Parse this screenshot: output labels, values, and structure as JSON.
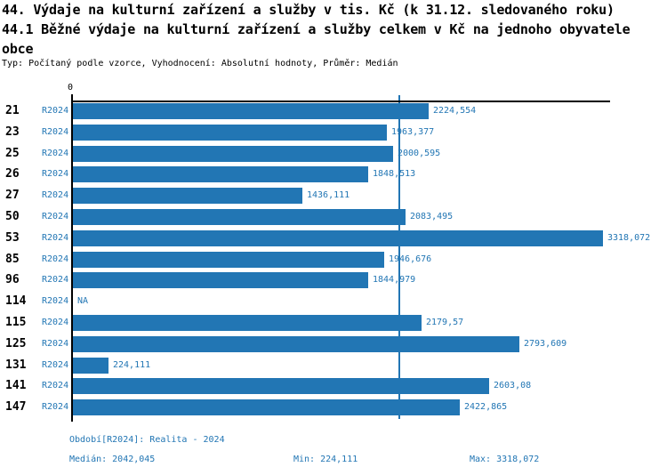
{
  "title": {
    "line1": "44. Výdaje na kulturní zařízení a služby v tis. Kč (k 31.12. sledovaného roku)",
    "line2": "44.1 Běžné výdaje na kulturní zařízení a služby celkem v Kč na jednoho obyvatele",
    "line3": "obce",
    "subtitle": "Typ: Počítaný podle vzorce, Vyhodnocení: Absolutní hodnoty, Průměr: Medián"
  },
  "chart_data": {
    "type": "bar",
    "orientation": "horizontal",
    "title": "44.1 Běžné výdaje na kulturní zařízení a služby celkem v Kč na jednoho obyvatele obce",
    "xlabel": "",
    "ylabel": "",
    "axis_zero_label": "0",
    "period_label": "R2024",
    "na_label": "NA",
    "categories": [
      "21",
      "23",
      "25",
      "26",
      "27",
      "50",
      "53",
      "85",
      "96",
      "114",
      "115",
      "125",
      "131",
      "141",
      "147"
    ],
    "values": [
      2224.554,
      1963.377,
      2000.595,
      1848.513,
      1436.111,
      2083.495,
      3318.072,
      1946.676,
      1844.979,
      null,
      2179.57,
      2793.609,
      224.111,
      2603.08,
      2422.865
    ],
    "value_labels": [
      "2224,554",
      "1963,377",
      "2000,595",
      "1848,513",
      "1436,111",
      "2083,495",
      "3318,072",
      "1946,676",
      "1844,979",
      "NA",
      "2179,57",
      "2793,609",
      "224,111",
      "2603,08",
      "2422,865"
    ],
    "median": 2042.045,
    "min": 224.111,
    "max": 3318.072,
    "xlim": [
      0,
      3350
    ],
    "colors": {
      "bar": "#2276b4",
      "text": "#2276b4",
      "axis": "#000000"
    }
  },
  "footer": {
    "period": "Období[R2024]: Realita - 2024",
    "median": "Medián: 2042,045",
    "min": "Min: 224,111",
    "max": "Max: 3318,072"
  }
}
